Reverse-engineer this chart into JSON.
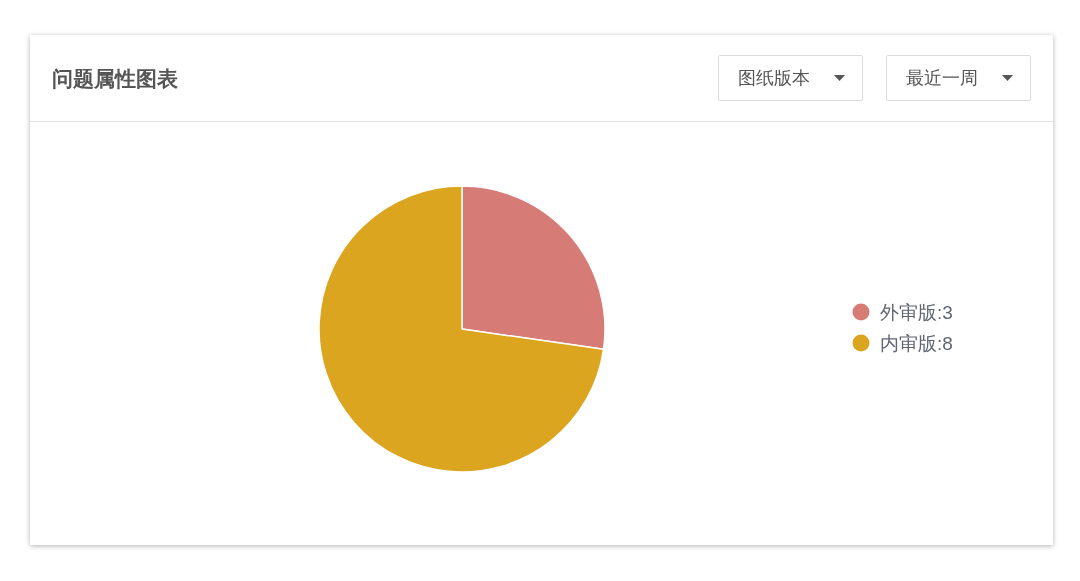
{
  "chart_data": {
    "type": "pie",
    "title": "问题属性图表",
    "annotations": [
      "图纸版本",
      "最近一周"
    ],
    "categories": [
      "外审版:3",
      "内审版:8"
    ],
    "values": [
      3,
      8
    ],
    "colors": [
      "#d77b77",
      "#dca520"
    ],
    "legend": "right"
  }
}
